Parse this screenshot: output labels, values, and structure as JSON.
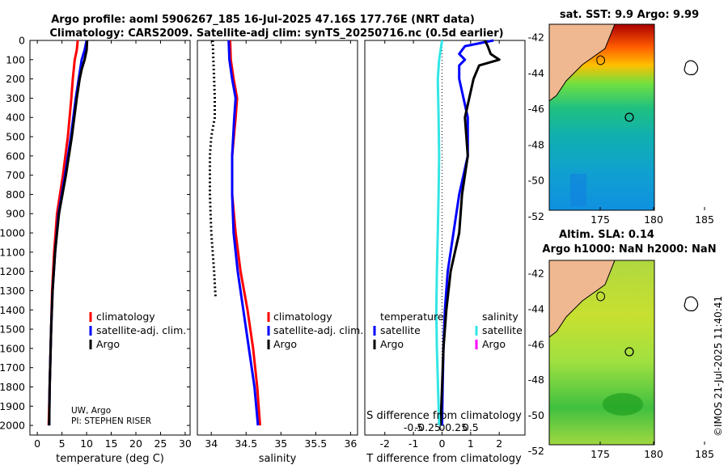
{
  "title": {
    "line1": "Argo profile: aoml 5906267_185 16-Jul-2025 47.16S 177.76E (NRT data)",
    "line2": "Climatology: CARS2009. Satellite-adj clim: synTS_20250716.nc (0.5d earlier)"
  },
  "colors": {
    "climatology": "#ff0000",
    "satellite": "#0000ff",
    "argo": "#000000",
    "sat_salinity": "#33e6e6",
    "argo_salinity": "#ff00ff"
  },
  "credits": {
    "org": "UW, Argo",
    "pi": "PI: STEPHEN RISER"
  },
  "watermark": "©IMOS 21-Jul-2025 11:40:41",
  "legend": {
    "climatology": "climatology",
    "satellite_adj": "satellite-adj. clim.",
    "argo": "Argo",
    "temperature_head": "temperature",
    "salinity_head": "salinity",
    "satellite": "satellite",
    "argo_short": "Argo"
  },
  "maps": {
    "sst_title": "sat. SST: 9.9 Argo: 9.99",
    "sla_title_line1": "Altim. SLA: 0.14",
    "sla_title_line2": "Argo h1000: NaN h2000: NaN",
    "lon_ticks": [
      "175",
      "180",
      "185"
    ],
    "lat_ticks": [
      "-42",
      "-44",
      "-46",
      "-48",
      "-50",
      "-52"
    ]
  },
  "chart_data": [
    {
      "type": "line",
      "name": "temperature",
      "xlabel": "temperature (deg C)",
      "ylabel": "",
      "xlim": [
        -1.5,
        31
      ],
      "ylim": [
        2050,
        0
      ],
      "xticks": [
        0,
        5,
        10,
        15,
        20,
        25,
        30
      ],
      "yticks": [
        0,
        100,
        200,
        300,
        400,
        500,
        600,
        700,
        800,
        900,
        1000,
        1100,
        1200,
        1300,
        1400,
        1500,
        1600,
        1700,
        1800,
        1900,
        2000
      ],
      "series": [
        {
          "name": "climatology",
          "color": "#ff0000",
          "depth": [
            0,
            50,
            100,
            200,
            300,
            500,
            700,
            900,
            1100,
            1300,
            1500,
            1800,
            2000
          ],
          "values": [
            8.2,
            8.0,
            7.6,
            7.2,
            6.9,
            6.2,
            5.2,
            4.0,
            3.4,
            3.0,
            2.8,
            2.5,
            2.3
          ]
        },
        {
          "name": "satellite-adj. clim.",
          "color": "#0000ff",
          "depth": [
            0,
            50,
            100,
            200,
            300,
            500,
            700,
            900,
            1100,
            1300,
            1500,
            1800,
            2000
          ],
          "values": [
            10.0,
            9.6,
            9.0,
            8.4,
            7.8,
            6.8,
            5.6,
            4.3,
            3.6,
            3.1,
            2.8,
            2.5,
            2.4
          ]
        },
        {
          "name": "Argo",
          "color": "#000000",
          "depth": [
            0,
            50,
            100,
            150,
            200,
            300,
            500,
            700,
            900,
            1100,
            1300,
            1500,
            1800,
            2000
          ],
          "values": [
            10.1,
            10.0,
            9.6,
            9.0,
            8.6,
            8.0,
            7.0,
            5.8,
            4.4,
            3.6,
            3.1,
            2.8,
            2.5,
            2.4
          ]
        }
      ]
    },
    {
      "type": "line",
      "name": "salinity",
      "xlabel": "salinity",
      "xlim": [
        33.8,
        36.1
      ],
      "ylim": [
        2050,
        0
      ],
      "xticks": [
        34,
        34.5,
        35,
        35.5,
        36
      ],
      "series": [
        {
          "name": "climatology",
          "color": "#ff0000",
          "depth": [
            0,
            100,
            200,
            300,
            400,
            600,
            800,
            1000,
            1200,
            1400,
            1600,
            1800,
            2000
          ],
          "values": [
            34.27,
            34.28,
            34.32,
            34.37,
            34.35,
            34.3,
            34.3,
            34.35,
            34.42,
            34.52,
            34.6,
            34.66,
            34.7
          ]
        },
        {
          "name": "satellite-adj. clim.",
          "color": "#0000ff",
          "depth": [
            0,
            100,
            200,
            300,
            400,
            600,
            800,
            1000,
            1200,
            1400,
            1600,
            1800,
            2000
          ],
          "values": [
            34.25,
            34.26,
            34.3,
            34.35,
            34.33,
            34.3,
            34.3,
            34.32,
            34.38,
            34.46,
            34.54,
            34.62,
            34.67
          ]
        },
        {
          "name": "Argo",
          "color": "#000000",
          "style": "dotted",
          "depth": [
            0,
            100,
            200,
            300,
            400,
            500,
            600,
            800,
            1000,
            1200,
            1330
          ],
          "values": [
            34.02,
            34.03,
            34.04,
            34.05,
            34.05,
            34.0,
            33.98,
            33.98,
            34.0,
            34.04,
            34.06
          ]
        }
      ]
    },
    {
      "type": "line",
      "name": "difference",
      "xlabel": "T difference from climatology",
      "xlabel_top": "S difference from climatology",
      "xlim": [
        -2.7,
        2.9
      ],
      "ylim": [
        2050,
        0
      ],
      "xticks": [
        -2,
        -1,
        0,
        1,
        2
      ],
      "xtick_labels": [
        "-2",
        "-1",
        "0",
        "1",
        "2"
      ],
      "xticks_top": [
        -1,
        -0.5,
        0,
        0.5,
        1
      ],
      "xtick_labels_top": [
        "-0.5",
        "-0.25",
        "0",
        "0.25",
        "0.5"
      ],
      "series": [
        {
          "name": "T satellite",
          "color": "#0000ff",
          "depth": [
            0,
            30,
            70,
            100,
            130,
            200,
            400,
            600,
            800,
            1000,
            1200,
            1400,
            1600,
            1800,
            2000
          ],
          "values": [
            1.8,
            0.8,
            0.6,
            0.8,
            0.6,
            0.6,
            0.9,
            0.9,
            0.6,
            0.4,
            0.2,
            0.1,
            0.05,
            0.02,
            0.0
          ]
        },
        {
          "name": "T Argo",
          "color": "#000000",
          "depth": [
            0,
            30,
            70,
            100,
            130,
            200,
            400,
            600,
            800,
            1000,
            1200,
            1400,
            1600,
            1800,
            2000
          ],
          "values": [
            1.5,
            1.6,
            1.7,
            2.0,
            1.3,
            1.1,
            0.8,
            0.9,
            0.7,
            0.6,
            0.3,
            0.15,
            0.05,
            0.0,
            -0.05
          ]
        },
        {
          "name": "S satellite",
          "color": "#33e6e6",
          "depth": [
            0,
            100,
            200,
            400,
            600,
            800,
            1000,
            1200,
            1400,
            1600,
            1800,
            2000
          ],
          "values": [
            0.0,
            -0.1,
            -0.15,
            -0.12,
            -0.1,
            -0.12,
            -0.15,
            -0.18,
            -0.2,
            -0.18,
            -0.14,
            -0.1
          ]
        }
      ]
    }
  ]
}
